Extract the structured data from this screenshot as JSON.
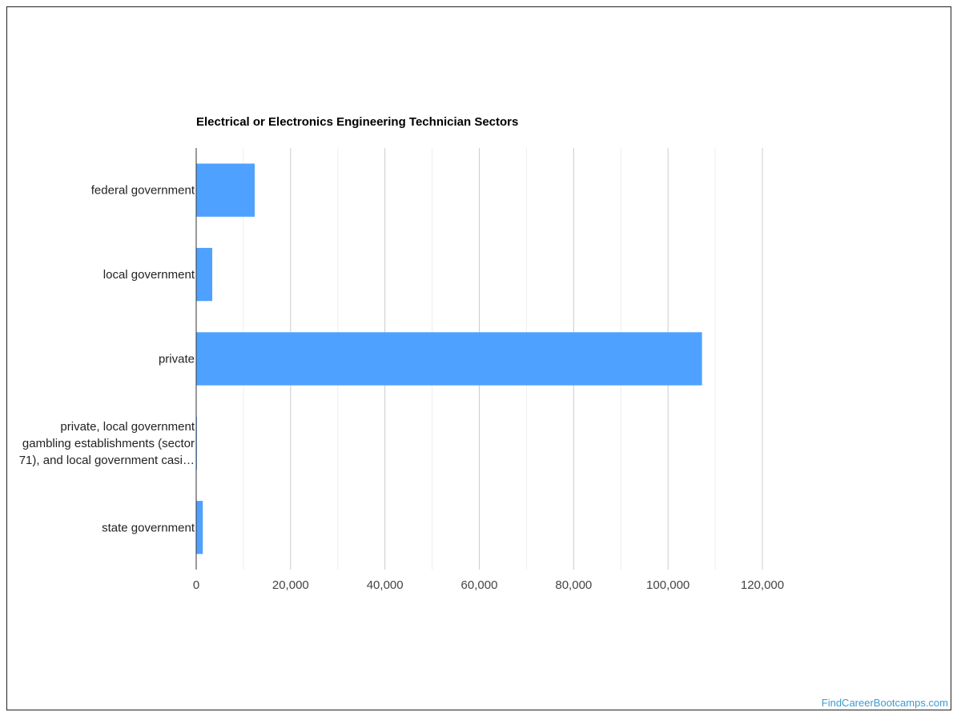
{
  "chart_data": {
    "type": "bar",
    "orientation": "horizontal",
    "title": "Electrical or Electronics Engineering Technician Sectors",
    "categories": [
      "federal government",
      "local government",
      "private",
      "private, local government gambling establishments (sector 71), and local government casi…",
      "state government"
    ],
    "category_lines": [
      [
        "federal government"
      ],
      [
        "local government"
      ],
      [
        "private"
      ],
      [
        "private, local government",
        "gambling establishments (sector",
        "71), and local government casi…"
      ],
      [
        "state government"
      ]
    ],
    "values": [
      12400,
      3400,
      107200,
      150,
      1400
    ],
    "xlim": [
      0,
      120000
    ],
    "xticks": [
      0,
      20000,
      40000,
      60000,
      80000,
      100000,
      120000
    ],
    "xtick_labels": [
      "0",
      "20,000",
      "40,000",
      "60,000",
      "80,000",
      "100,000",
      "120,000"
    ],
    "grid": true,
    "legend": "none",
    "bar_color": "#4ea1ff"
  },
  "watermark": "FindCareerBootcamps.com"
}
